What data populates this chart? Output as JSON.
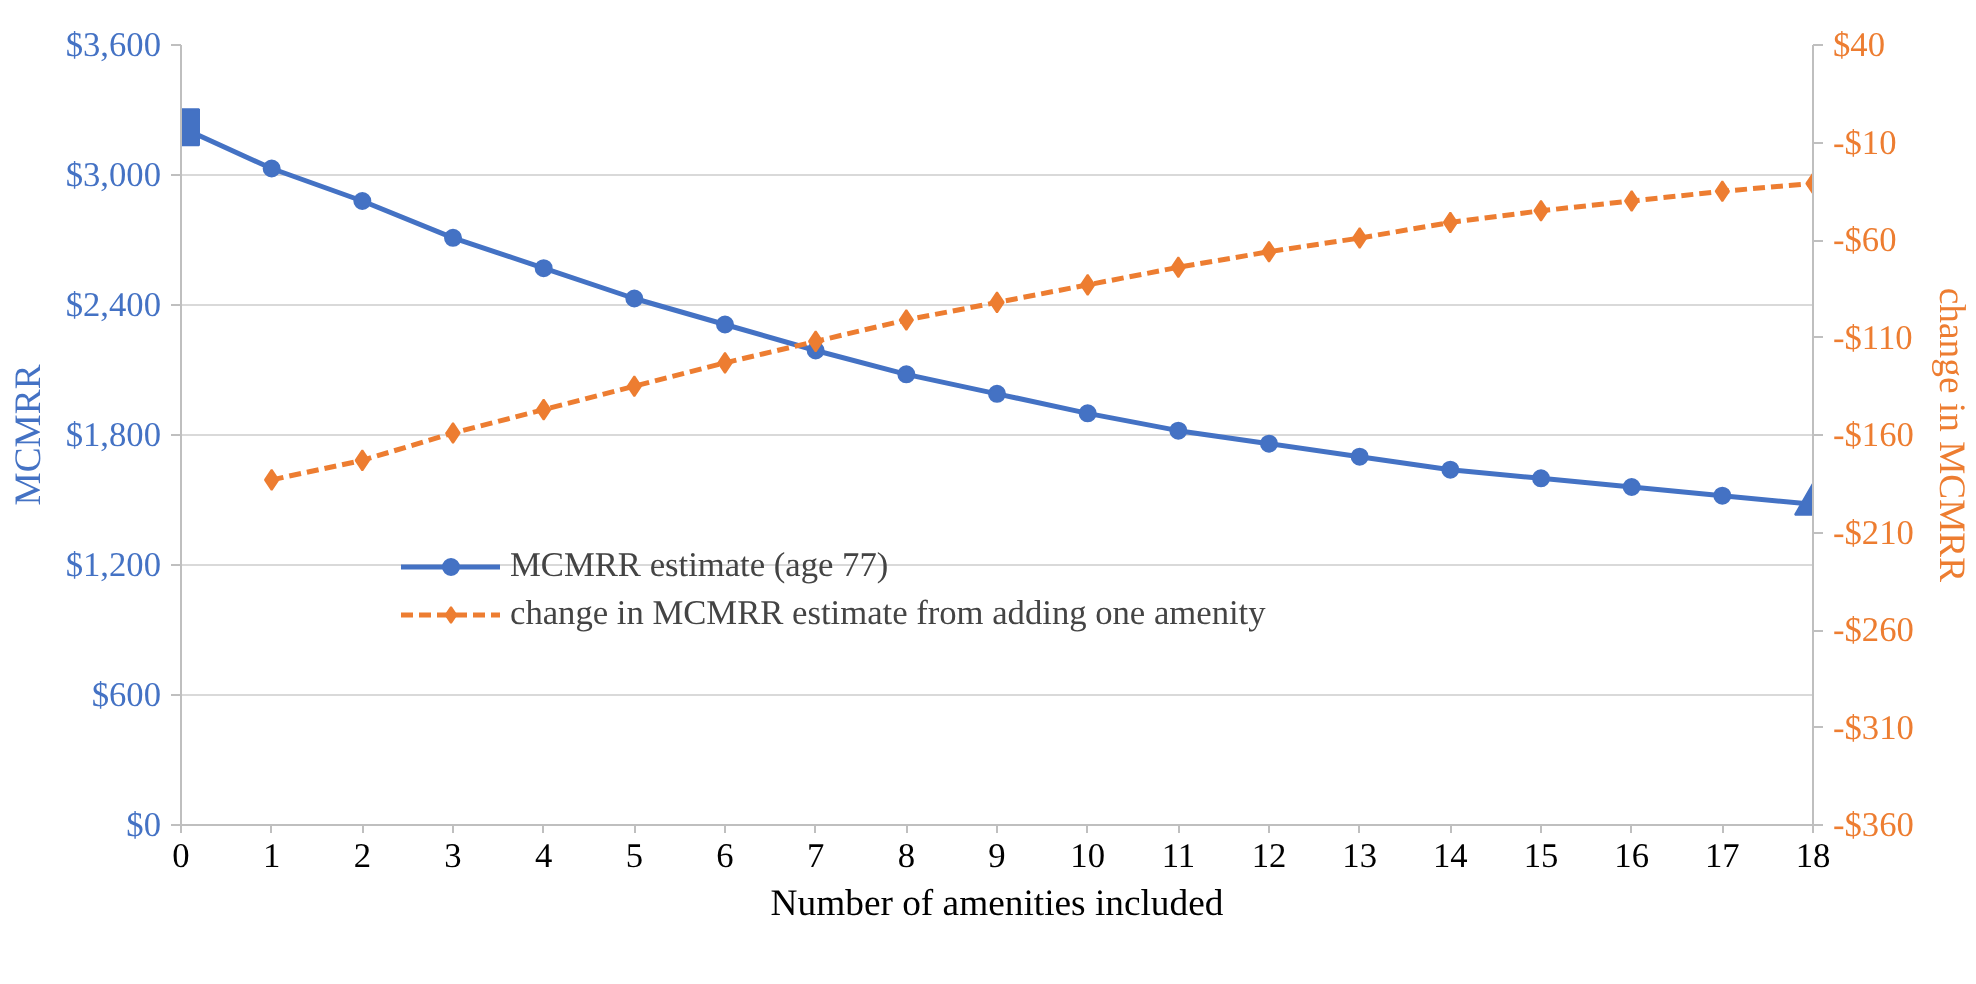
{
  "chart_data": {
    "type": "line",
    "xlabel": "Number of amenities included",
    "ylabel": "MCMRR",
    "y2label": "change in MCMRR",
    "x": [
      0,
      1,
      2,
      3,
      4,
      5,
      6,
      7,
      8,
      9,
      10,
      11,
      12,
      13,
      14,
      15,
      16,
      17,
      18
    ],
    "xlim": [
      0,
      18
    ],
    "xticks": [
      0,
      1,
      2,
      3,
      4,
      5,
      6,
      7,
      8,
      9,
      10,
      11,
      12,
      13,
      14,
      15,
      16,
      17,
      18
    ],
    "ylim": [
      0,
      3600
    ],
    "yticks": [
      {
        "value": 0,
        "label": "$0"
      },
      {
        "value": 600,
        "label": "$600"
      },
      {
        "value": 1200,
        "label": "$1,200"
      },
      {
        "value": 1800,
        "label": "$1,800"
      },
      {
        "value": 2400,
        "label": "$2,400"
      },
      {
        "value": 3000,
        "label": "$3,000"
      },
      {
        "value": 3600,
        "label": "$3,600"
      }
    ],
    "y2lim": [
      -360,
      40
    ],
    "y2ticks": [
      {
        "value": -360,
        "label": "-$360"
      },
      {
        "value": -310,
        "label": "-$310"
      },
      {
        "value": -260,
        "label": "-$260"
      },
      {
        "value": -210,
        "label": "-$210"
      },
      {
        "value": -160,
        "label": "-$160"
      },
      {
        "value": -110,
        "label": "-$110"
      },
      {
        "value": -60,
        "label": "-$60"
      },
      {
        "value": -10,
        "label": "-$10"
      },
      {
        "value": 40,
        "label": "$40"
      }
    ],
    "grid": "y",
    "legend": "bottom",
    "series": [
      {
        "name": "MCMRR estimate (age 77)",
        "color": "#4472c4",
        "marker": "circle",
        "line_style": "solid",
        "values": [
          3220,
          3030,
          2880,
          2710,
          2570,
          2430,
          2310,
          2190,
          2080,
          1990,
          1900,
          1820,
          1760,
          1700,
          1640,
          1600,
          1560,
          1520,
          1480
        ]
      },
      {
        "name": "change in MCMRR estimate from adding one amenity",
        "color": "#ed7d31",
        "marker": "diamond",
        "line_style": "dashed",
        "axis": "y2",
        "values": [
          null,
          -183,
          -173,
          -159,
          -147,
          -135,
          -123,
          -112,
          -101,
          -92,
          -83,
          -74,
          -66,
          -59,
          -51,
          -45,
          -40,
          -35,
          -31
        ]
      },
      {
        "type": "scatter",
        "color": "#4472c4",
        "marker": "square",
        "x": [
          0
        ],
        "values": [
          3220
        ]
      },
      {
        "type": "scatter",
        "color": "#4472c4",
        "marker": "triangle",
        "x": [
          18
        ],
        "values": [
          1480
        ]
      }
    ]
  }
}
